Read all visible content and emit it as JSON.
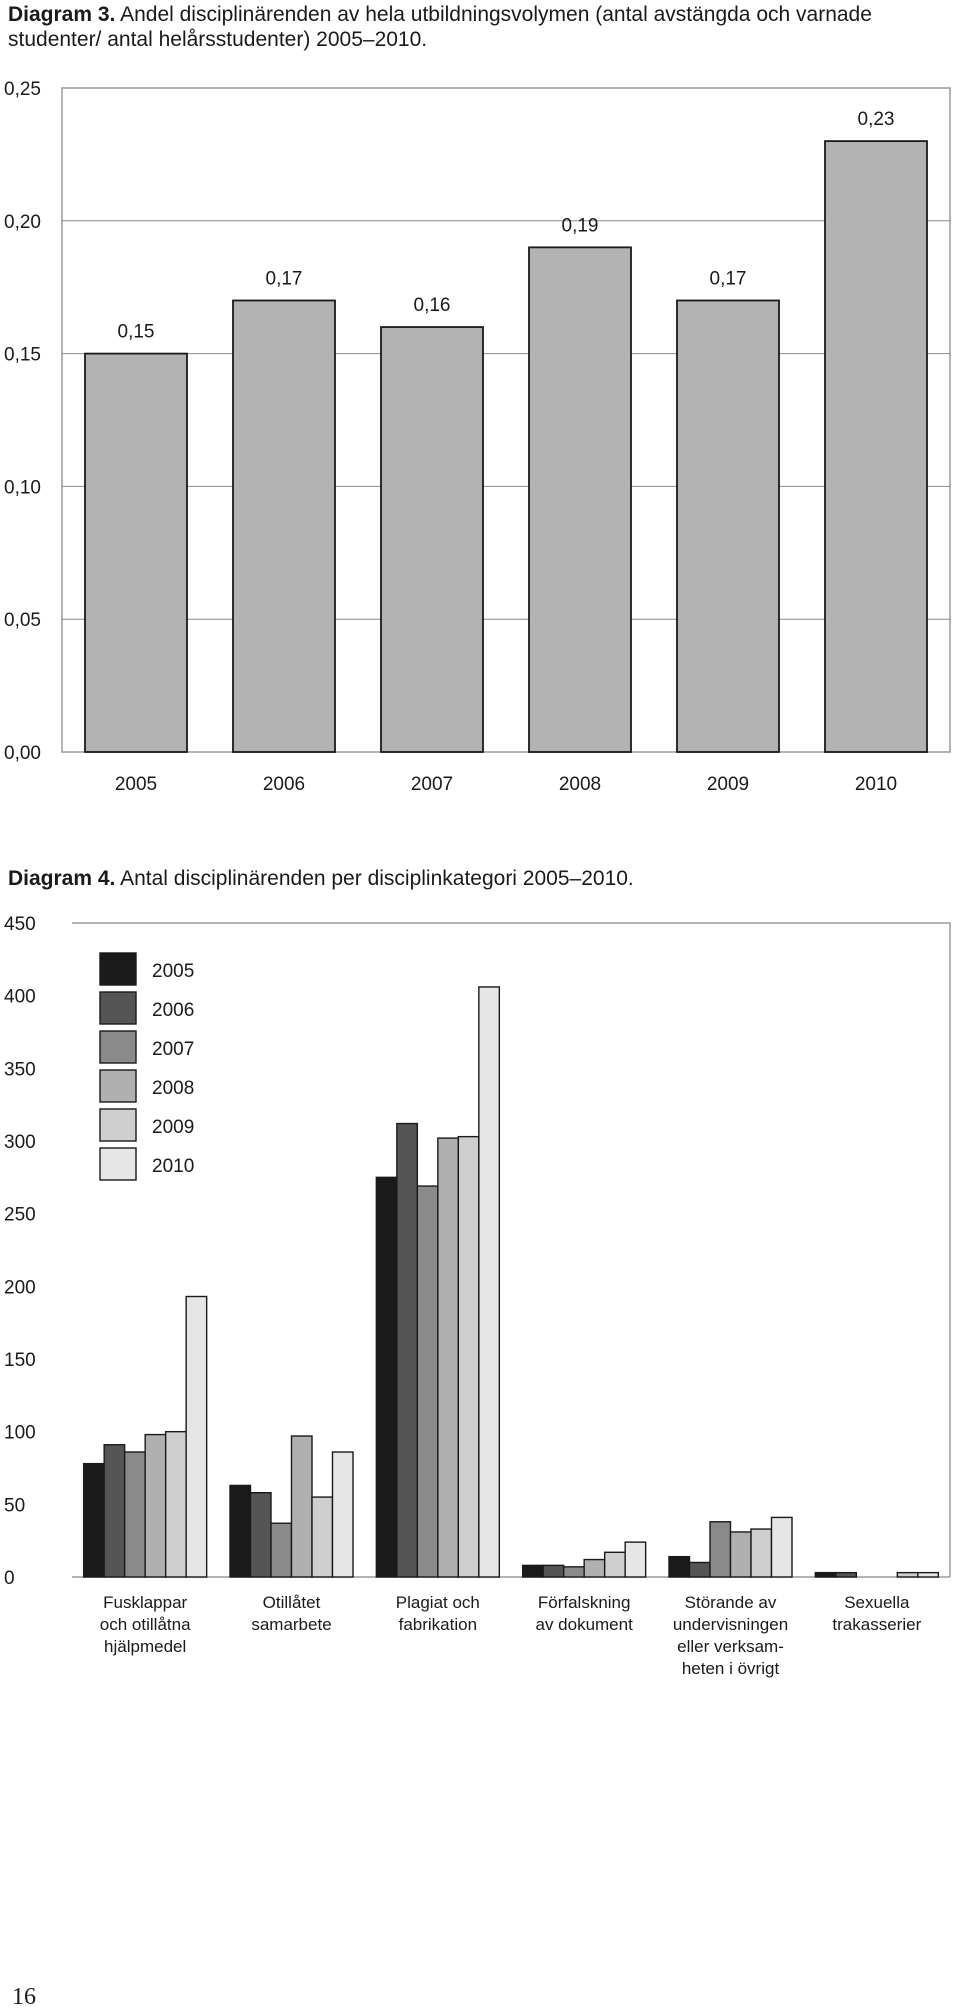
{
  "captions": {
    "diagram3_label": "Diagram 3.",
    "diagram3_text": "Andel disciplinärenden av hela utbildningsvolymen (antal avstängda och varnade studenter/ antal helårsstudenter) 2005–2010.",
    "diagram4_label": "Diagram 4.",
    "diagram4_text": "Antal disciplinärenden per disciplinkategori 2005–2010."
  },
  "page_number": "16",
  "colors": {
    "bar_gray": "#b3b3b3",
    "series": [
      "#1a1a1a",
      "#555555",
      "#8a8a8a",
      "#b0b0b0",
      "#cfcfcf",
      "#e6e6e6"
    ],
    "frame": "#9a9a9a",
    "grid": "#8c8c8c"
  },
  "chart_data": [
    {
      "type": "bar",
      "categories": [
        "2005",
        "2006",
        "2007",
        "2008",
        "2009",
        "2010"
      ],
      "values": [
        0.15,
        0.17,
        0.16,
        0.19,
        0.17,
        0.23
      ],
      "value_labels": [
        "0,15",
        "0,17",
        "0,16",
        "0,19",
        "0,17",
        "0,23"
      ],
      "ylim": [
        0,
        0.25
      ],
      "yticks": [
        0,
        0.05,
        0.1,
        0.15,
        0.2,
        0.25
      ],
      "ytick_labels": [
        "0,00",
        "0,05",
        "0,10",
        "0,15",
        "0,20",
        "0,25"
      ],
      "grid": true
    },
    {
      "type": "bar",
      "categories": [
        [
          "Fusklappar",
          "och otillåtna",
          "hjälpmedel"
        ],
        [
          "Otillåtet",
          "samarbete"
        ],
        [
          "Plagiat och",
          "fabrikation"
        ],
        [
          "Förfalskning",
          "av dokument"
        ],
        [
          "Störande av",
          "undervisningen",
          "eller verksam-",
          "heten i övrigt"
        ],
        [
          "Sexuella",
          "trakasserier"
        ]
      ],
      "series": [
        {
          "name": "2005",
          "values": [
            78,
            63,
            275,
            8,
            14,
            3
          ]
        },
        {
          "name": "2006",
          "values": [
            91,
            58,
            312,
            8,
            10,
            3
          ]
        },
        {
          "name": "2007",
          "values": [
            86,
            37,
            269,
            7,
            38,
            0
          ]
        },
        {
          "name": "2008",
          "values": [
            98,
            97,
            302,
            12,
            31,
            0
          ]
        },
        {
          "name": "2009",
          "values": [
            100,
            55,
            303,
            17,
            33,
            3
          ]
        },
        {
          "name": "2010",
          "values": [
            193,
            86,
            406,
            24,
            41,
            3
          ]
        }
      ],
      "ylim": [
        0,
        450
      ],
      "yticks": [
        0,
        50,
        100,
        150,
        200,
        250,
        300,
        350,
        400,
        450
      ],
      "ytick_labels": [
        "0",
        "50",
        "100",
        "150",
        "200",
        "250",
        "300",
        "350",
        "400",
        "450"
      ],
      "legend_position": "top-left",
      "grid": false
    }
  ]
}
